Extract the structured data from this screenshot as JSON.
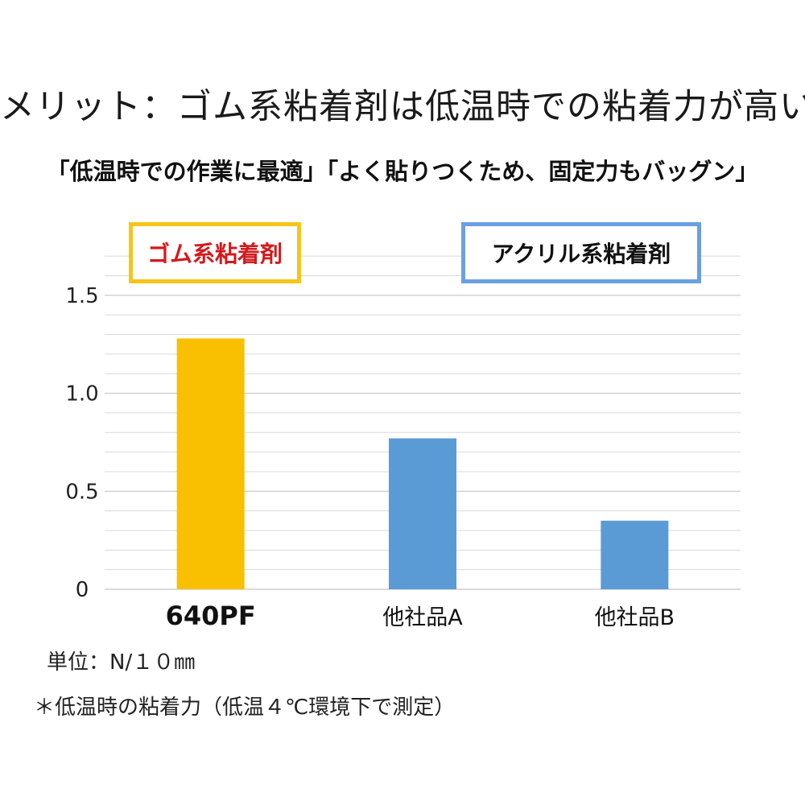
{
  "title": "メリット：ゴム系粘着剤は低温時での粘着力が高い",
  "subtitle": "「低温時での作業に最適」「よく貼りつくため、固定力もバッグン」",
  "legend": {
    "rubber": "ゴム系粘着剤",
    "acrylic": "アクリル系粘着剤"
  },
  "notes": {
    "unit": "単位：N/１０㎜",
    "condition": "＊低温時の粘着力（低温４℃環境下で測定）"
  },
  "colors": {
    "rubber": "#f8c000",
    "acrylic": "#5b9bd5",
    "grid": "#d9d9d9"
  },
  "chart_data": {
    "type": "bar",
    "categories": [
      "640PF",
      "他社品A",
      "他社品B"
    ],
    "values": [
      1.28,
      0.77,
      0.35
    ],
    "groups": [
      "rubber",
      "acrylic",
      "acrylic"
    ],
    "y_ticks": [
      "0",
      "0.5",
      "1.0",
      "1.5"
    ],
    "ylim": [
      0,
      1.75
    ],
    "grid": true,
    "legend_placement": "top"
  }
}
